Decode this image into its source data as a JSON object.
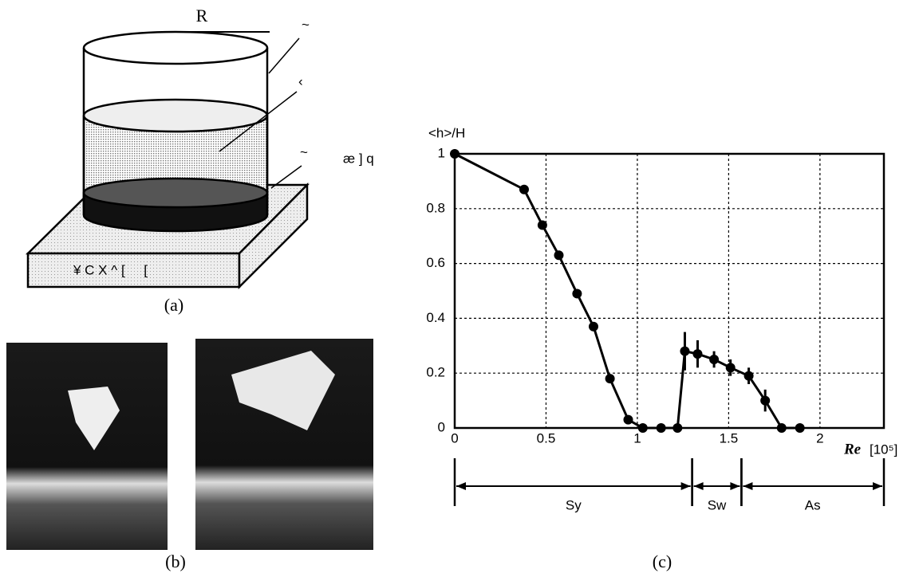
{
  "diagram": {
    "labels": [
      "R",
      "~",
      "‹",
      "~",
      "æ ] q",
      "¥ C X ^ [     ["
    ],
    "panels": [
      "(a)",
      "(b)",
      "(c)"
    ]
  },
  "chart_data": {
    "type": "line",
    "ylabel": "<h>/H",
    "xlabel": "Re",
    "xunit": "[10⁵]",
    "x": [
      0,
      0.38,
      0.48,
      0.57,
      0.67,
      0.76,
      0.85,
      0.95,
      1.03,
      1.13,
      1.22,
      1.26,
      1.33,
      1.42,
      1.51,
      1.61,
      1.7,
      1.79,
      1.89
    ],
    "series": [
      {
        "color": "#000000",
        "values": [
          1,
          0.87,
          0.74,
          0.63,
          0.49,
          0.37,
          0.18,
          0.03,
          0,
          0,
          0,
          0.28,
          0.27,
          0.25,
          0.22,
          0.19,
          0.1,
          0,
          0
        ],
        "errors": [
          null,
          null,
          null,
          null,
          null,
          null,
          null,
          null,
          null,
          null,
          null,
          0.07,
          0.05,
          0.03,
          0.03,
          0.03,
          0.04,
          null,
          null
        ]
      }
    ],
    "xlim": [
      0,
      2.35
    ],
    "ylim": [
      0,
      1
    ],
    "xticks": [
      0,
      0.5,
      1,
      1.5,
      2
    ],
    "yticks": [
      0,
      0.2,
      0.4,
      0.6,
      0.8,
      1
    ],
    "grid": true,
    "regions": [
      {
        "label": "Sy",
        "start": 0,
        "end": 1.3
      },
      {
        "label": "Sw",
        "start": 1.3,
        "end": 1.57
      },
      {
        "label": "As",
        "start": 1.57,
        "end": 2.35
      }
    ]
  }
}
